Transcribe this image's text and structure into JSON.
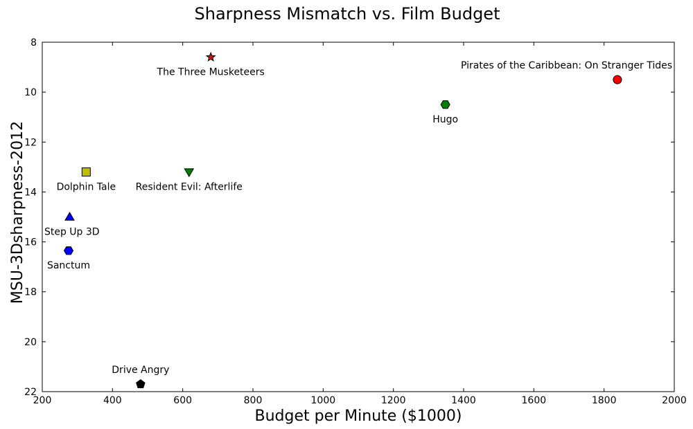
{
  "chart_data": {
    "type": "scatter",
    "title": "Sharpness Mismatch vs. Film Budget",
    "xlabel": "Budget per Minute ($1000)",
    "ylabel": "MSU-3Dsharpness-2012",
    "xlim": [
      200,
      2000
    ],
    "ylim": [
      8,
      22
    ],
    "y_inverted": true,
    "grid": false,
    "legend": "none",
    "xticks": [
      200,
      400,
      600,
      800,
      1000,
      1200,
      1400,
      1600,
      1800,
      2000
    ],
    "yticks": [
      8,
      10,
      12,
      14,
      16,
      18,
      20,
      22
    ],
    "points": [
      {
        "label": "The Three Musketeers",
        "x": 680,
        "y": 8.6,
        "marker": "star",
        "color": "#cc1111",
        "label_pos": "below"
      },
      {
        "label": "Pirates of the Caribbean: On Stranger Tides",
        "x": 1838,
        "y": 9.5,
        "marker": "circle",
        "color": "#ff0000",
        "label_pos": "above"
      },
      {
        "label": "Hugo",
        "x": 1348,
        "y": 10.5,
        "marker": "hexagon",
        "color": "#008000",
        "label_pos": "below"
      },
      {
        "label": "Dolphin Tale",
        "x": 325,
        "y": 13.2,
        "marker": "square",
        "color": "#bfbf00",
        "label_pos": "below"
      },
      {
        "label": "Resident Evil: Afterlife",
        "x": 618,
        "y": 13.2,
        "marker": "triangle-down",
        "color": "#008000",
        "label_pos": "below"
      },
      {
        "label": "Step Up 3D",
        "x": 278,
        "y": 15.0,
        "marker": "triangle-up",
        "color": "#0000ff",
        "label_pos": "below"
      },
      {
        "label": "Sanctum",
        "x": 275,
        "y": 16.35,
        "marker": "hexagon",
        "color": "#0000ff",
        "label_pos": "below"
      },
      {
        "label": "Drive Angry",
        "x": 480,
        "y": 21.7,
        "marker": "pentagon",
        "color": "#000000",
        "label_pos": "above"
      }
    ]
  }
}
